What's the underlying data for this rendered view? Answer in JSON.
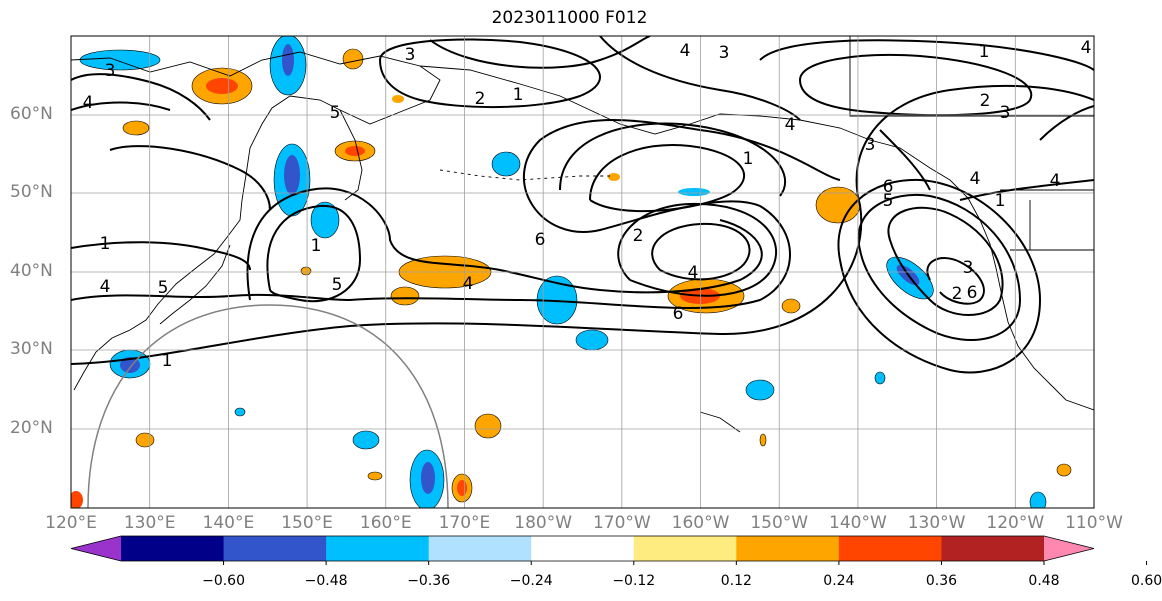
{
  "title": "2023011000 F012",
  "map": {
    "region": "North Pacific",
    "lat_ticks": [
      "60°N",
      "50°N",
      "40°N",
      "30°N",
      "20°N"
    ],
    "lon_ticks": [
      "120°E",
      "130°E",
      "140°E",
      "150°E",
      "160°E",
      "170°E",
      "180°W",
      "170°W",
      "160°W",
      "150°W",
      "140°W",
      "130°W",
      "120°W",
      "110°W"
    ],
    "grid": true,
    "contour_color": "#000000",
    "contour_labels": [
      "3",
      "4",
      "2",
      "1",
      "5",
      "3",
      "4",
      "3",
      "1",
      "2",
      "3",
      "4",
      "3",
      "4",
      "1",
      "4",
      "4",
      "1",
      "6",
      "5",
      "1",
      "5",
      "4",
      "6",
      "2",
      "4",
      "6",
      "3",
      "2",
      "1",
      "1",
      "5",
      "4",
      "6"
    ]
  },
  "colorbar": {
    "ticks": [
      "−0.60",
      "−0.48",
      "−0.36",
      "−0.24",
      "−0.12",
      "0.12",
      "0.24",
      "0.36",
      "0.48",
      "0.60"
    ],
    "colors": [
      "#9933cc",
      "#000088",
      "#3355cc",
      "#00bfff",
      "#b0e2ff",
      "#ffffff",
      "#ffec80",
      "#ffa500",
      "#ff4500",
      "#b22222",
      "#ff88b0"
    ],
    "extend": "both"
  }
}
